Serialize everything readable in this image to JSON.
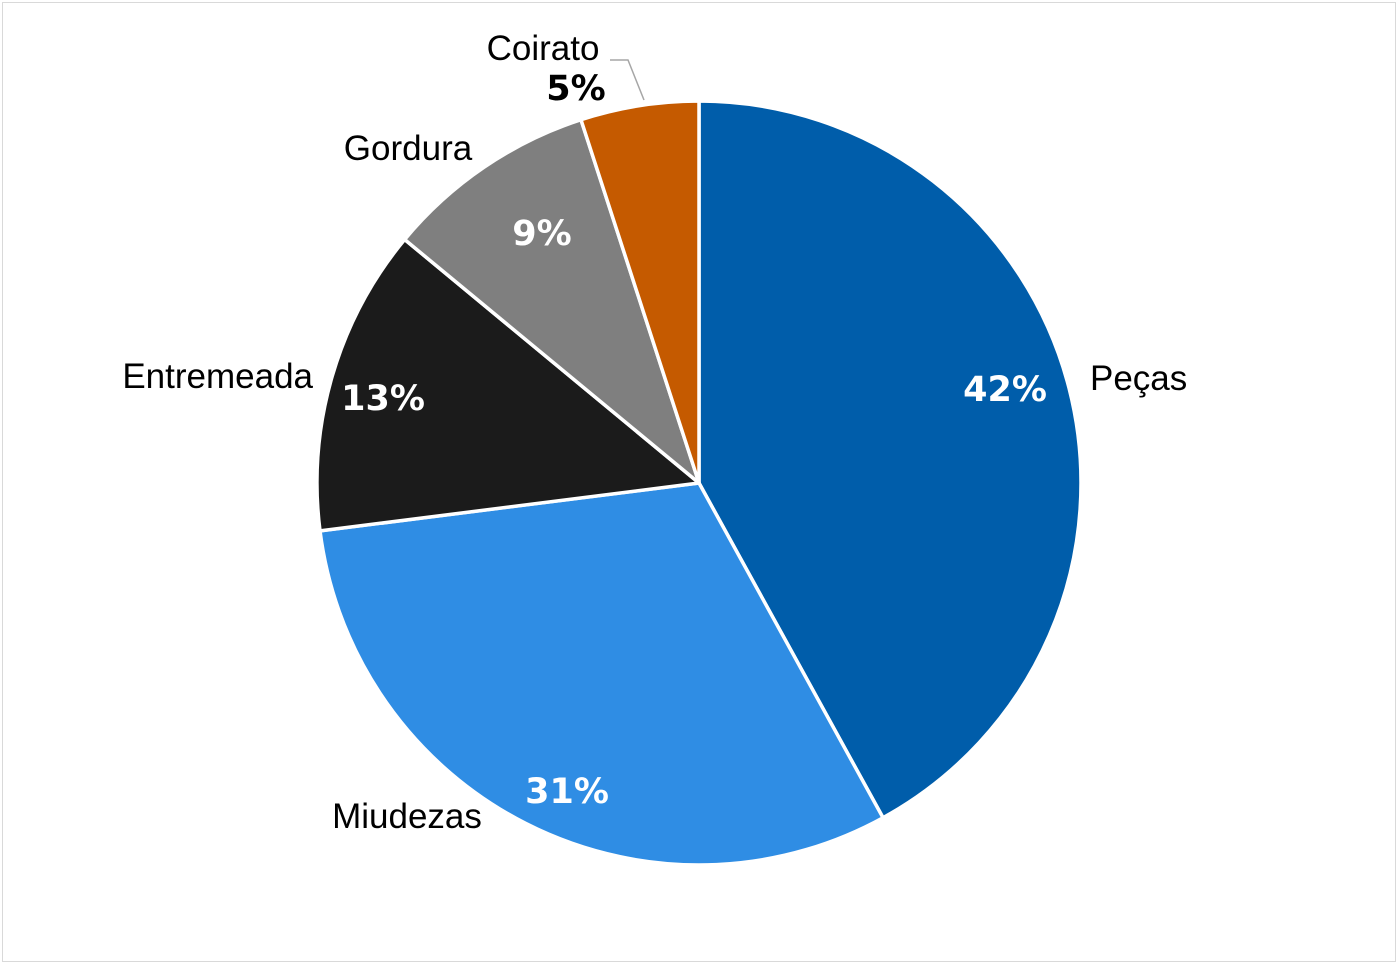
{
  "chart_data": {
    "type": "pie",
    "title": "",
    "start_angle_deg": 0,
    "direction": "clockwise",
    "slices": [
      {
        "name": "Peças",
        "value": 42,
        "label": "42%",
        "color": "#005DAA",
        "label_color": "#FFFFFF"
      },
      {
        "name": "Miudezas",
        "value": 31,
        "label": "31%",
        "color": "#2F8DE4",
        "label_color": "#FFFFFF"
      },
      {
        "name": "Entremeada",
        "value": 13,
        "label": "13%",
        "color": "#1B1B1B",
        "label_color": "#FFFFFF"
      },
      {
        "name": "Gordura",
        "value": 9,
        "label": "9%",
        "color": "#7F7F7F",
        "label_color": "#FFFFFF"
      },
      {
        "name": "Coirato",
        "value": 5,
        "label": "5%",
        "color": "#C55A00",
        "label_color": "#000000"
      }
    ],
    "slice_border_color": "#FFFFFF",
    "leader_line_color": "#A6A6A6",
    "legend": "none"
  }
}
